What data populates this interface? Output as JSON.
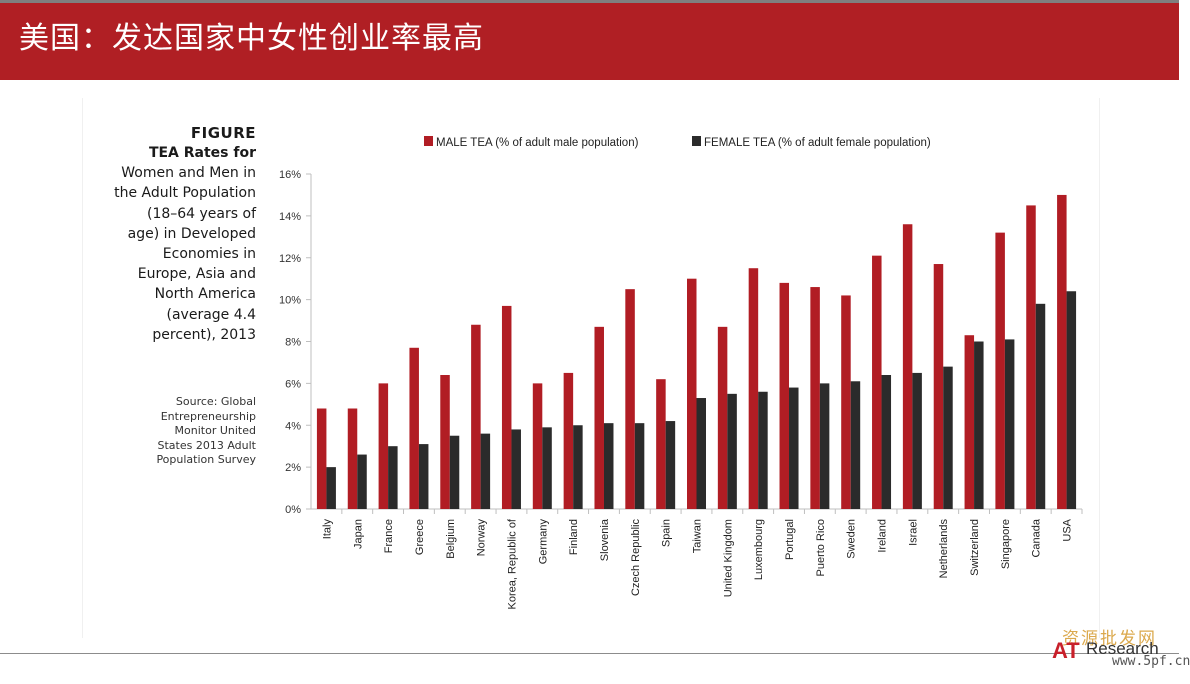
{
  "header": {
    "title": "美国：发达国家中女性创业率最高"
  },
  "caption": {
    "heading": "FIGURE",
    "lines": [
      {
        "text": "TEA Rates for",
        "bold": true
      },
      {
        "text": "Women and Men in",
        "bold": false
      },
      {
        "text": "the Adult Population",
        "bold": false
      },
      {
        "text": "(18–64 years of",
        "bold": false
      },
      {
        "text": "age) in Developed",
        "bold": false
      },
      {
        "text": "Economies in",
        "bold": false
      },
      {
        "text": "Europe, Asia and",
        "bold": false
      },
      {
        "text": "North America",
        "bold": false
      },
      {
        "text": "(average 4.4",
        "bold": false
      },
      {
        "text": "percent), 2013",
        "bold": false
      }
    ]
  },
  "source": {
    "lines": [
      "Source: Global",
      "Entrepreneurship",
      "Monitor United",
      "States 2013 Adult",
      "Population Survey"
    ]
  },
  "chart_data": {
    "type": "bar",
    "title": "",
    "xlabel": "",
    "ylabel": "",
    "ylim": [
      0,
      16
    ],
    "yticks": [
      0,
      2,
      4,
      6,
      8,
      10,
      12,
      14,
      16
    ],
    "ytick_format": "percent",
    "grid": false,
    "legend_position": "top",
    "categories": [
      "Italy",
      "Japan",
      "France",
      "Greece",
      "Belgium",
      "Norway",
      "Korea, Republic of",
      "Germany",
      "Finland",
      "Slovenia",
      "Czech Republic",
      "Spain",
      "Taiwan",
      "United Kingdom",
      "Luxembourg",
      "Portugal",
      "Puerto Rico",
      "Sweden",
      "Ireland",
      "Israel",
      "Netherlands",
      "Switzerland",
      "Singapore",
      "Canada",
      "USA"
    ],
    "series": [
      {
        "name": "MALE TEA (% of adult male population)",
        "color": "#b11d24",
        "values": [
          4.8,
          4.8,
          6.0,
          7.7,
          6.4,
          8.8,
          9.7,
          6.0,
          6.5,
          8.7,
          10.5,
          6.2,
          11.0,
          8.7,
          11.5,
          10.8,
          10.6,
          10.2,
          12.1,
          13.6,
          11.7,
          8.3,
          13.2,
          14.5,
          15.0
        ]
      },
      {
        "name": "FEMALE TEA (% of adult female population)",
        "color": "#2b2b2b",
        "values": [
          2.0,
          2.6,
          3.0,
          3.1,
          3.5,
          3.6,
          3.8,
          3.9,
          4.0,
          4.1,
          4.1,
          4.2,
          5.3,
          5.5,
          5.6,
          5.8,
          6.0,
          6.1,
          6.4,
          6.5,
          6.8,
          8.0,
          8.1,
          9.8,
          10.4
        ]
      }
    ]
  },
  "watermark": {
    "line1": "资源批发网",
    "brand_a": "AT",
    "brand_word": "Research",
    "site": "www.5pf.cn"
  },
  "colors": {
    "header_bg": "#b01f24",
    "male": "#b11d24",
    "female": "#2b2b2b"
  }
}
